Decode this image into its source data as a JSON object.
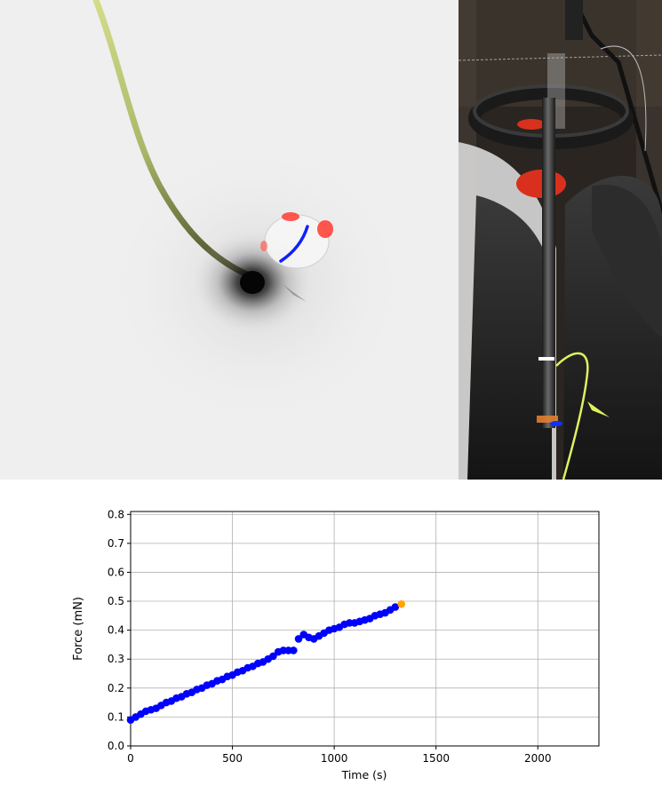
{
  "chart_data": {
    "type": "scatter",
    "title": "",
    "xlabel": "Time (s)",
    "ylabel": "Force (mN)",
    "xlim": [
      0,
      2300
    ],
    "ylim": [
      0,
      0.81
    ],
    "xticks": [
      0,
      500,
      1000,
      1500,
      2000
    ],
    "yticks": [
      0.0,
      0.1,
      0.2,
      0.3,
      0.4,
      0.5,
      0.6,
      0.7,
      0.8
    ],
    "grid": true,
    "series": [
      {
        "color": "#0000ff",
        "x": [
          0,
          25,
          50,
          75,
          100,
          125,
          150,
          175,
          200,
          225,
          250,
          275,
          300,
          325,
          350,
          375,
          400,
          425,
          450,
          475,
          500,
          525,
          550,
          575,
          600,
          625,
          650,
          675,
          700,
          725,
          750,
          775,
          800,
          825,
          850,
          875,
          900,
          925,
          950,
          975,
          1000,
          1025,
          1050,
          1075,
          1100,
          1125,
          1150,
          1175,
          1200,
          1225,
          1250,
          1275,
          1300
        ],
        "y": [
          0.09,
          0.1,
          0.11,
          0.12,
          0.125,
          0.13,
          0.14,
          0.15,
          0.155,
          0.165,
          0.17,
          0.18,
          0.185,
          0.195,
          0.2,
          0.21,
          0.215,
          0.225,
          0.23,
          0.24,
          0.245,
          0.255,
          0.26,
          0.27,
          0.275,
          0.285,
          0.29,
          0.3,
          0.31,
          0.325,
          0.33,
          0.33,
          0.33,
          0.37,
          0.385,
          0.375,
          0.37,
          0.38,
          0.39,
          0.4,
          0.405,
          0.41,
          0.42,
          0.425,
          0.425,
          0.43,
          0.435,
          0.44,
          0.45,
          0.455,
          0.46,
          0.47,
          0.48
        ]
      },
      {
        "color": "#ffa500",
        "x": [
          1330
        ],
        "y": [
          0.49
        ]
      }
    ]
  }
}
